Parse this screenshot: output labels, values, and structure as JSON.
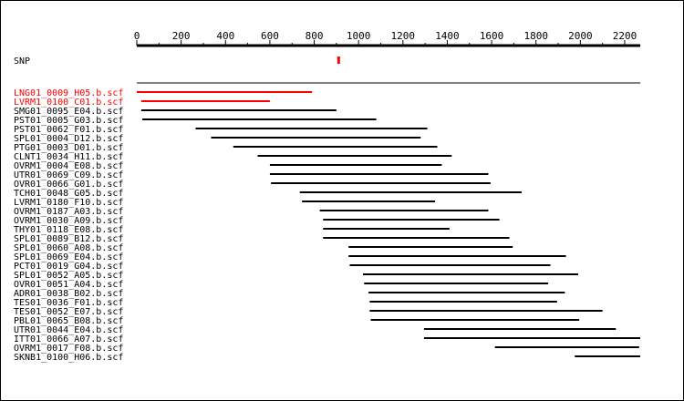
{
  "axis": {
    "min": 0,
    "max": 2270,
    "ticks": [
      0,
      200,
      400,
      600,
      800,
      1000,
      1200,
      1400,
      1600,
      1800,
      2000,
      2200
    ]
  },
  "snp": {
    "label": "SNP",
    "position": 910,
    "color": "#ff0000"
  },
  "colors": {
    "default": "#000000",
    "highlight": "#ff0000"
  },
  "reads": [
    {
      "name": "LNG01_0009_H05.b.scf",
      "start": 0,
      "end": 790,
      "highlight": true
    },
    {
      "name": "LVRM1_0100_C01.b.scf",
      "start": 20,
      "end": 600,
      "highlight": true
    },
    {
      "name": "SMG01_0095_E04.b.scf",
      "start": 20,
      "end": 900,
      "highlight": false
    },
    {
      "name": "PST01_0005_G03.b.scf",
      "start": 25,
      "end": 1080,
      "highlight": false
    },
    {
      "name": "PST01_0062_F01.b.scf",
      "start": 265,
      "end": 1310,
      "highlight": false
    },
    {
      "name": "SPL01_0004_D12.b.scf",
      "start": 335,
      "end": 1280,
      "highlight": false
    },
    {
      "name": "PTG01_0003_D01.b.scf",
      "start": 435,
      "end": 1355,
      "highlight": false
    },
    {
      "name": "CLNT1_0034_H11.b.scf",
      "start": 545,
      "end": 1420,
      "highlight": false
    },
    {
      "name": "OVRM1_0004_E08.b.scf",
      "start": 600,
      "end": 1375,
      "highlight": false
    },
    {
      "name": "UTR01_0069_C09.b.scf",
      "start": 600,
      "end": 1585,
      "highlight": false
    },
    {
      "name": "OVR01_0066_G01.b.scf",
      "start": 605,
      "end": 1595,
      "highlight": false
    },
    {
      "name": "TCH01_0048_G05.b.scf",
      "start": 735,
      "end": 1735,
      "highlight": false
    },
    {
      "name": "LVRM1_0180_F10.b.scf",
      "start": 745,
      "end": 1345,
      "highlight": false
    },
    {
      "name": "OVRM1_0187_A03.b.scf",
      "start": 825,
      "end": 1585,
      "highlight": false
    },
    {
      "name": "OVRM1_0030_A09.b.scf",
      "start": 840,
      "end": 1635,
      "highlight": false
    },
    {
      "name": "THY01_0118_E08.b.scf",
      "start": 840,
      "end": 1410,
      "highlight": false
    },
    {
      "name": "SPL01_0089_B12.b.scf",
      "start": 840,
      "end": 1680,
      "highlight": false
    },
    {
      "name": "SPL01_0060_A08.b.scf",
      "start": 955,
      "end": 1695,
      "highlight": false
    },
    {
      "name": "SPL01_0069_E04.b.scf",
      "start": 955,
      "end": 1935,
      "highlight": false
    },
    {
      "name": "PCT01_0019_G04.b.scf",
      "start": 960,
      "end": 1865,
      "highlight": false
    },
    {
      "name": "SPL01_0052_A05.b.scf",
      "start": 1020,
      "end": 1990,
      "highlight": false
    },
    {
      "name": "OVR01_0051_A04.b.scf",
      "start": 1025,
      "end": 1855,
      "highlight": false
    },
    {
      "name": "ADR01_0038_B02.b.scf",
      "start": 1045,
      "end": 1930,
      "highlight": false
    },
    {
      "name": "TES01_0036_F01.b.scf",
      "start": 1050,
      "end": 1895,
      "highlight": false
    },
    {
      "name": "TES01_0052_E07.b.scf",
      "start": 1050,
      "end": 2100,
      "highlight": false
    },
    {
      "name": "PBL01_0065_B08.b.scf",
      "start": 1055,
      "end": 1995,
      "highlight": false
    },
    {
      "name": "UTR01_0044_E04.b.scf",
      "start": 1295,
      "end": 2160,
      "highlight": false
    },
    {
      "name": "ITT01_0066_A07.b.scf",
      "start": 1295,
      "end": 2270,
      "highlight": false
    },
    {
      "name": "OVRM1_0017_F08.b.scf",
      "start": 1615,
      "end": 2265,
      "highlight": false
    },
    {
      "name": "SKNB1_0100_H06.b.scf",
      "start": 1975,
      "end": 2270,
      "highlight": false
    }
  ]
}
